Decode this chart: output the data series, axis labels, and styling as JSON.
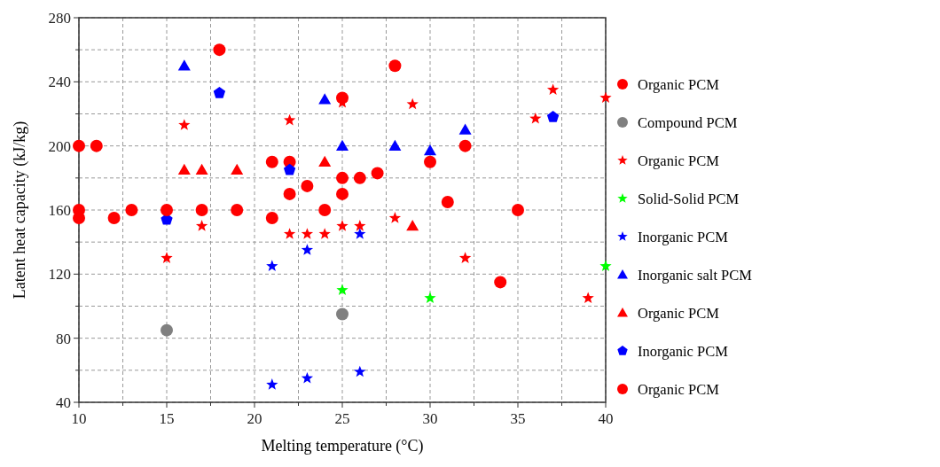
{
  "chart_data": {
    "type": "scatter",
    "xlabel": "Melting temperature (°C)",
    "ylabel": "Latent heat capacity (kJ/kg)",
    "xlim": [
      10,
      40
    ],
    "xticks": [
      10,
      {
        "value": 12.5,
        "label": null
      },
      15,
      {
        "value": 17.5,
        "label": null
      },
      20,
      {
        "value": 22.5,
        "label": null
      },
      25,
      {
        "value": 27.5,
        "label": null
      },
      30,
      {
        "value": 32.5,
        "label": null
      },
      35,
      {
        "value": 37.5,
        "label": null
      },
      40
    ],
    "ylim": [
      40,
      280
    ],
    "yticks": [
      40,
      {
        "value": 60,
        "label": null
      },
      80,
      {
        "value": 100,
        "label": null
      },
      120,
      {
        "value": 140,
        "label": null
      },
      160,
      {
        "value": 180,
        "label": null
      },
      200,
      {
        "value": 220,
        "label": null
      },
      240,
      {
        "value": 260,
        "label": null
      },
      280
    ],
    "grid": true,
    "legend": "right",
    "series": [
      {
        "name": "Organic PCM",
        "color": "#ff0000",
        "marker": "circle",
        "x": [
          10,
          10,
          11,
          12,
          18,
          21,
          21,
          22,
          25,
          25,
          26,
          28,
          31,
          35
        ],
        "values": [
          200,
          160,
          200,
          155,
          260,
          190,
          155,
          190,
          230,
          170,
          180,
          250,
          165,
          160
        ]
      },
      {
        "name": "Compound PCM",
        "color": "#808080",
        "marker": "circle",
        "x": [
          15,
          25
        ],
        "values": [
          85,
          95
        ]
      },
      {
        "name": "Organic PCM",
        "color": "#ff0000",
        "marker": "star",
        "x": [
          15,
          16,
          17,
          22,
          22,
          23,
          24,
          25,
          25,
          26,
          28,
          29,
          32,
          36,
          37,
          39,
          40
        ],
        "values": [
          130,
          213,
          150,
          216,
          145,
          145,
          145,
          227,
          150,
          150,
          155,
          226,
          130,
          217,
          235,
          105,
          230
        ]
      },
      {
        "name": "Solid-Solid PCM",
        "color": "#00ff00",
        "marker": "star",
        "x": [
          25,
          30,
          40
        ],
        "values": [
          110,
          105,
          125
        ]
      },
      {
        "name": "Inorganic PCM",
        "color": "#0000ff",
        "marker": "star",
        "x": [
          21,
          23,
          26,
          21,
          23,
          26
        ],
        "values": [
          125,
          135,
          145,
          51,
          55,
          59
        ]
      },
      {
        "name": "Inorganic salt PCM",
        "color": "#0000ff",
        "marker": "triangle",
        "x": [
          16,
          24,
          25,
          28,
          30,
          32
        ],
        "values": [
          250,
          229,
          200,
          200,
          197,
          210
        ]
      },
      {
        "name": "Organic PCM",
        "color": "#ff0000",
        "marker": "triangle",
        "x": [
          16,
          17,
          19,
          24,
          29
        ],
        "values": [
          185,
          185,
          185,
          190,
          150
        ]
      },
      {
        "name": "Inorganic PCM",
        "color": "#0000ff",
        "x": [
          18,
          22,
          15,
          37
        ],
        "values": [
          233,
          185,
          154,
          218
        ]
      },
      {
        "name": "Organic PCM",
        "color": "#ff0000",
        "marker": "circle",
        "x": [
          10,
          13,
          15,
          17,
          19,
          22,
          23,
          24,
          25,
          27,
          30,
          32,
          34
        ],
        "values": [
          155,
          160,
          160,
          160,
          160,
          170,
          175,
          160,
          180,
          183,
          190,
          200,
          115
        ]
      }
    ]
  }
}
